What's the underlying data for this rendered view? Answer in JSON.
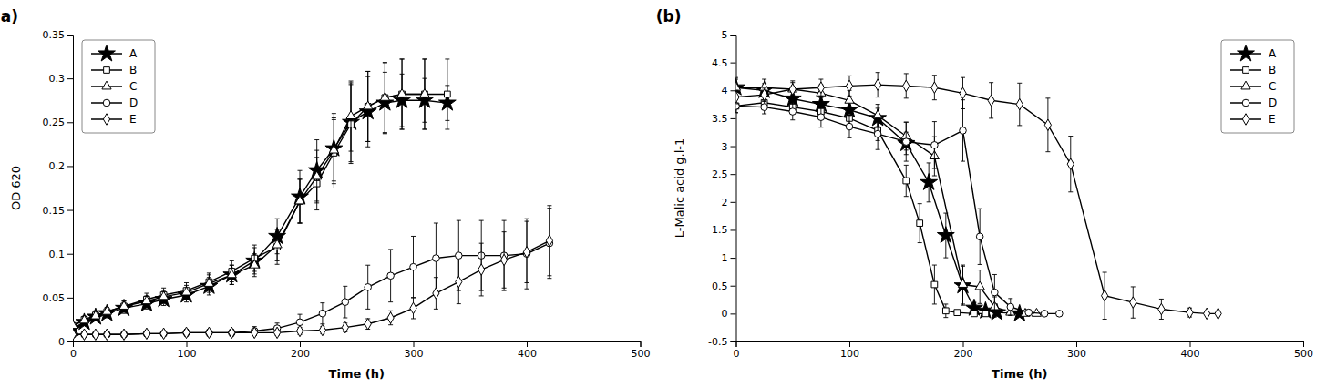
{
  "chart_data": [
    {
      "type": "line",
      "title": "(a)",
      "x_label": "Time (h)",
      "y_label": "OD 620",
      "xlim": [
        0,
        500
      ],
      "ylim": [
        0,
        0.35
      ],
      "xticks": [
        0,
        100,
        200,
        300,
        400,
        500
      ],
      "yticks": [
        0,
        0.05,
        0.1,
        0.15,
        0.2,
        0.25,
        0.3,
        0.35
      ],
      "legend": "upper left",
      "series": [
        {
          "name": "A",
          "color": "#000000",
          "marker": "star",
          "x": [
            0,
            10,
            20,
            30,
            45,
            65,
            80,
            100,
            120,
            140,
            160,
            180,
            200,
            215,
            230,
            245,
            260,
            275,
            290,
            310,
            330
          ],
          "values": [
            0.015,
            0.022,
            0.028,
            0.032,
            0.038,
            0.043,
            0.048,
            0.053,
            0.063,
            0.076,
            0.092,
            0.12,
            0.165,
            0.195,
            0.22,
            0.25,
            0.262,
            0.272,
            0.275,
            0.275,
            0.272
          ],
          "errors": [
            0.003,
            0.004,
            0.004,
            0.005,
            0.006,
            0.006,
            0.007,
            0.008,
            0.01,
            0.011,
            0.015,
            0.02,
            0.03,
            0.035,
            0.04,
            0.045,
            0.04,
            0.035,
            0.03,
            0.025,
            0.02
          ]
        },
        {
          "name": "B",
          "color": "#000000",
          "marker": "square-open",
          "x": [
            0,
            10,
            20,
            30,
            45,
            65,
            80,
            100,
            120,
            140,
            160,
            180,
            200,
            215,
            230,
            245,
            260,
            275,
            290,
            310,
            330
          ],
          "values": [
            0.018,
            0.025,
            0.03,
            0.034,
            0.04,
            0.048,
            0.053,
            0.058,
            0.068,
            0.08,
            0.095,
            0.108,
            0.16,
            0.18,
            0.215,
            0.248,
            0.268,
            0.278,
            0.282,
            0.282,
            0.282
          ],
          "errors": [
            0.003,
            0.004,
            0.005,
            0.005,
            0.006,
            0.007,
            0.008,
            0.009,
            0.01,
            0.012,
            0.015,
            0.02,
            0.025,
            0.03,
            0.04,
            0.045,
            0.04,
            0.04,
            0.04,
            0.04,
            0.04
          ]
        },
        {
          "name": "C",
          "color": "#000000",
          "marker": "triangle-open",
          "x": [
            0,
            10,
            20,
            30,
            45,
            65,
            80,
            100,
            120,
            140,
            160,
            180,
            200,
            215,
            230,
            245,
            260,
            275,
            290,
            310
          ],
          "values": [
            0.018,
            0.024,
            0.029,
            0.034,
            0.04,
            0.046,
            0.051,
            0.056,
            0.066,
            0.076,
            0.087,
            0.11,
            0.16,
            0.188,
            0.218,
            0.257,
            0.268,
            0.278,
            0.282,
            0.282
          ],
          "errors": [
            0.003,
            0.004,
            0.005,
            0.005,
            0.006,
            0.006,
            0.007,
            0.008,
            0.01,
            0.011,
            0.013,
            0.018,
            0.025,
            0.03,
            0.035,
            0.04,
            0.04,
            0.04,
            0.04,
            0.04
          ]
        },
        {
          "name": "D",
          "color": "#000000",
          "marker": "circle-open",
          "x": [
            0,
            10,
            20,
            30,
            45,
            65,
            80,
            100,
            120,
            140,
            160,
            180,
            200,
            220,
            240,
            260,
            280,
            300,
            320,
            340,
            360,
            380,
            400,
            420
          ],
          "values": [
            0.008,
            0.008,
            0.008,
            0.008,
            0.008,
            0.009,
            0.009,
            0.01,
            0.01,
            0.01,
            0.012,
            0.015,
            0.022,
            0.032,
            0.045,
            0.062,
            0.075,
            0.085,
            0.095,
            0.098,
            0.098,
            0.098,
            0.1,
            0.112
          ],
          "errors": [
            0.002,
            0.002,
            0.002,
            0.002,
            0.003,
            0.003,
            0.003,
            0.004,
            0.004,
            0.004,
            0.005,
            0.006,
            0.009,
            0.012,
            0.018,
            0.025,
            0.03,
            0.035,
            0.04,
            0.04,
            0.04,
            0.04,
            0.04,
            0.04
          ]
        },
        {
          "name": "E",
          "color": "#000000",
          "marker": "diamond-open",
          "x": [
            0,
            10,
            20,
            30,
            45,
            65,
            80,
            100,
            120,
            140,
            160,
            180,
            200,
            220,
            240,
            260,
            280,
            300,
            320,
            340,
            360,
            380,
            400,
            420
          ],
          "values": [
            0.008,
            0.008,
            0.008,
            0.008,
            0.008,
            0.009,
            0.009,
            0.01,
            0.01,
            0.01,
            0.01,
            0.01,
            0.012,
            0.013,
            0.016,
            0.02,
            0.027,
            0.038,
            0.055,
            0.068,
            0.082,
            0.093,
            0.102,
            0.115
          ],
          "errors": [
            0.002,
            0.002,
            0.002,
            0.002,
            0.002,
            0.003,
            0.003,
            0.003,
            0.003,
            0.003,
            0.003,
            0.003,
            0.004,
            0.004,
            0.005,
            0.006,
            0.008,
            0.012,
            0.018,
            0.025,
            0.03,
            0.032,
            0.035,
            0.04
          ]
        }
      ]
    },
    {
      "type": "line",
      "title": "(b)",
      "x_label": "Time (h)",
      "y_label": "L-Malic acid g.l-1",
      "xlim": [
        0,
        500
      ],
      "ylim": [
        -0.5,
        5
      ],
      "xticks": [
        0,
        100,
        200,
        300,
        400,
        500
      ],
      "yticks": [
        -0.5,
        0,
        0.5,
        1,
        1.5,
        2,
        2.5,
        3,
        3.5,
        4,
        4.5,
        5
      ],
      "legend": "upper right",
      "series": [
        {
          "name": "A",
          "color": "#000000",
          "marker": "star",
          "x": [
            0,
            25,
            50,
            75,
            100,
            125,
            150,
            170,
            185,
            200,
            210,
            220,
            230,
            250
          ],
          "values": [
            4.05,
            4.0,
            3.85,
            3.75,
            3.65,
            3.5,
            3.05,
            2.35,
            1.4,
            0.5,
            0.1,
            0.05,
            0.02,
            0.0
          ],
          "errors": [
            0.15,
            0.12,
            0.12,
            0.12,
            0.15,
            0.18,
            0.2,
            0.35,
            0.4,
            0.35,
            0.1,
            0.05,
            0.02,
            0.0
          ]
        },
        {
          "name": "B",
          "color": "#000000",
          "marker": "square-open",
          "x": [
            0,
            25,
            50,
            75,
            100,
            125,
            150,
            162,
            175,
            185,
            195,
            210,
            220
          ],
          "values": [
            3.72,
            3.78,
            3.7,
            3.62,
            3.5,
            3.28,
            2.38,
            1.62,
            0.52,
            0.05,
            0.02,
            0.0,
            0.0
          ],
          "errors": [
            0.12,
            0.12,
            0.12,
            0.12,
            0.15,
            0.18,
            0.28,
            0.35,
            0.35,
            0.12,
            0.02,
            0.0,
            0.0
          ]
        },
        {
          "name": "C",
          "color": "#000000",
          "marker": "triangle-open",
          "x": [
            0,
            25,
            50,
            75,
            100,
            125,
            150,
            175,
            200,
            215,
            228,
            242,
            255,
            265
          ],
          "values": [
            4.05,
            4.05,
            4.02,
            3.95,
            3.82,
            3.55,
            3.18,
            2.82,
            0.52,
            0.48,
            0.12,
            0.02,
            0.0,
            0.0
          ],
          "errors": [
            0.18,
            0.15,
            0.15,
            0.15,
            0.18,
            0.2,
            0.25,
            0.35,
            0.35,
            0.3,
            0.18,
            0.05,
            0.0,
            0.0
          ]
        },
        {
          "name": "D",
          "color": "#000000",
          "marker": "circle-open",
          "x": [
            0,
            25,
            50,
            75,
            100,
            125,
            150,
            175,
            200,
            215,
            228,
            242,
            258,
            272,
            285
          ],
          "values": [
            3.72,
            3.7,
            3.62,
            3.52,
            3.35,
            3.22,
            3.08,
            3.02,
            3.28,
            1.38,
            0.38,
            0.12,
            0.02,
            0.0,
            0.0
          ],
          "errors": [
            0.12,
            0.12,
            0.15,
            0.18,
            0.2,
            0.28,
            0.35,
            0.42,
            0.55,
            0.5,
            0.32,
            0.15,
            0.05,
            0.0,
            0.0
          ]
        },
        {
          "name": "E",
          "color": "#000000",
          "marker": "diamond-open",
          "x": [
            0,
            25,
            50,
            75,
            100,
            125,
            150,
            175,
            200,
            225,
            250,
            275,
            295,
            325,
            350,
            375,
            400,
            415,
            425
          ],
          "values": [
            3.88,
            3.92,
            4.02,
            4.05,
            4.08,
            4.1,
            4.08,
            4.05,
            3.95,
            3.82,
            3.75,
            3.38,
            2.68,
            0.32,
            0.2,
            0.08,
            0.02,
            0.0,
            0.0
          ],
          "errors": [
            0.12,
            0.12,
            0.12,
            0.15,
            0.18,
            0.22,
            0.22,
            0.22,
            0.28,
            0.32,
            0.38,
            0.48,
            0.5,
            0.42,
            0.28,
            0.18,
            0.08,
            0.02,
            0.0
          ]
        }
      ]
    }
  ]
}
